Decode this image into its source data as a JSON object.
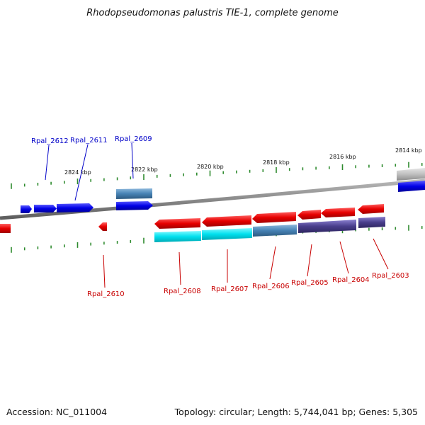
{
  "title": "Rhodopseudomonas palustris TIE-1, complete genome",
  "accession": "Accession: NC_011004",
  "summary": "Topology: circular; Length: 5,744,041 bp; Genes: 5,305",
  "colors": {
    "forward_label": "#0000c8",
    "reverse_label": "#c80000",
    "backbone": "#888888",
    "tick": "#2e8b2e",
    "cds_forward": "#0000e6",
    "cds_reverse": "#e60000",
    "feature_cyan": "#00e0ee",
    "feature_steel": "#4682b4",
    "feature_purple": "#483d8b",
    "feature_gray": "#bfbfbf"
  },
  "kbp_labels": [
    "2824 kbp",
    "2822 kbp",
    "2820 kbp",
    "2818 kbp",
    "2816 kbp",
    "2814 kbp"
  ],
  "forward_gene_labels": [
    "Rpal_2612",
    "Rpal_2611",
    "Rpal_2609"
  ],
  "reverse_gene_labels": [
    "Rpal_2610",
    "Rpal_2608",
    "Rpal_2607",
    "Rpal_2606",
    "Rpal_2605",
    "Rpal_2604",
    "Rpal_2603"
  ]
}
